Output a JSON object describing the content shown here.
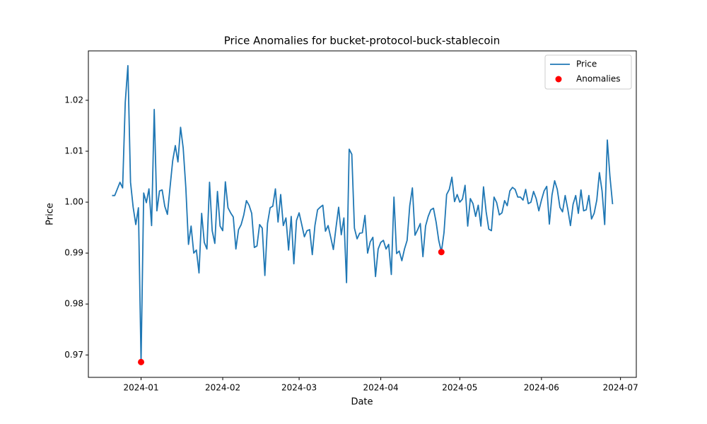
{
  "chart_data": {
    "type": "line",
    "title": "Price Anomalies for bucket-protocol-buck-stablecoin",
    "x_label": "Date",
    "y_label": "Price",
    "x": [
      "2023-12-21",
      "2023-12-22",
      "2023-12-23",
      "2023-12-24",
      "2023-12-25",
      "2023-12-26",
      "2023-12-27",
      "2023-12-28",
      "2023-12-29",
      "2023-12-30",
      "2023-12-31",
      "2024-01-01",
      "2024-01-02",
      "2024-01-03",
      "2024-01-04",
      "2024-01-05",
      "2024-01-06",
      "2024-01-07",
      "2024-01-08",
      "2024-01-09",
      "2024-01-10",
      "2024-01-11",
      "2024-01-12",
      "2024-01-13",
      "2024-01-14",
      "2024-01-15",
      "2024-01-16",
      "2024-01-17",
      "2024-01-18",
      "2024-01-19",
      "2024-01-20",
      "2024-01-21",
      "2024-01-22",
      "2024-01-23",
      "2024-01-24",
      "2024-01-25",
      "2024-01-26",
      "2024-01-27",
      "2024-01-28",
      "2024-01-29",
      "2024-01-30",
      "2024-01-31",
      "2024-02-01",
      "2024-02-02",
      "2024-02-03",
      "2024-02-04",
      "2024-02-05",
      "2024-02-06",
      "2024-02-07",
      "2024-02-08",
      "2024-02-09",
      "2024-02-10",
      "2024-02-11",
      "2024-02-12",
      "2024-02-13",
      "2024-02-14",
      "2024-02-15",
      "2024-02-16",
      "2024-02-17",
      "2024-02-18",
      "2024-02-19",
      "2024-02-20",
      "2024-02-21",
      "2024-02-22",
      "2024-02-23",
      "2024-02-24",
      "2024-02-25",
      "2024-02-26",
      "2024-02-27",
      "2024-02-28",
      "2024-02-29",
      "2024-03-01",
      "2024-03-02",
      "2024-03-03",
      "2024-03-04",
      "2024-03-05",
      "2024-03-06",
      "2024-03-07",
      "2024-03-08",
      "2024-03-09",
      "2024-03-10",
      "2024-03-11",
      "2024-03-12",
      "2024-03-13",
      "2024-03-14",
      "2024-03-15",
      "2024-03-16",
      "2024-03-17",
      "2024-03-18",
      "2024-03-19",
      "2024-03-20",
      "2024-03-21",
      "2024-03-22",
      "2024-03-23",
      "2024-03-24",
      "2024-03-25",
      "2024-03-26",
      "2024-03-27",
      "2024-03-28",
      "2024-03-29",
      "2024-03-30",
      "2024-03-31",
      "2024-04-01",
      "2024-04-02",
      "2024-04-03",
      "2024-04-04",
      "2024-04-05",
      "2024-04-06",
      "2024-04-07",
      "2024-04-08",
      "2024-04-09",
      "2024-04-10",
      "2024-04-11",
      "2024-04-12",
      "2024-04-13",
      "2024-04-14",
      "2024-04-15",
      "2024-04-16",
      "2024-04-17",
      "2024-04-18",
      "2024-04-19",
      "2024-04-20",
      "2024-04-21",
      "2024-04-22",
      "2024-04-23",
      "2024-04-24",
      "2024-04-25",
      "2024-04-26",
      "2024-04-27",
      "2024-04-28",
      "2024-04-29",
      "2024-04-30",
      "2024-05-01",
      "2024-05-02",
      "2024-05-03",
      "2024-05-04",
      "2024-05-05",
      "2024-05-06",
      "2024-05-07",
      "2024-05-08",
      "2024-05-09",
      "2024-05-10",
      "2024-05-11",
      "2024-05-12",
      "2024-05-13",
      "2024-05-14",
      "2024-05-15",
      "2024-05-16",
      "2024-05-17",
      "2024-05-18",
      "2024-05-19",
      "2024-05-20",
      "2024-05-21",
      "2024-05-22",
      "2024-05-23",
      "2024-05-24",
      "2024-05-25",
      "2024-05-26",
      "2024-05-27",
      "2024-05-28",
      "2024-05-29",
      "2024-05-30",
      "2024-05-31",
      "2024-06-01",
      "2024-06-02",
      "2024-06-03",
      "2024-06-04",
      "2024-06-05",
      "2024-06-06",
      "2024-06-07",
      "2024-06-08",
      "2024-06-09",
      "2024-06-10",
      "2024-06-11",
      "2024-06-12",
      "2024-06-13",
      "2024-06-14",
      "2024-06-15",
      "2024-06-16",
      "2024-06-17",
      "2024-06-18",
      "2024-06-19",
      "2024-06-20",
      "2024-06-21",
      "2024-06-22",
      "2024-06-23",
      "2024-06-24",
      "2024-06-25",
      "2024-06-26",
      "2024-06-27",
      "2024-06-28"
    ],
    "series": [
      {
        "name": "Price",
        "color": "#1f77b4",
        "values": [
          1.0013,
          1.0013,
          1.0026,
          1.0039,
          1.0028,
          1.0196,
          1.0268,
          1.0039,
          0.999,
          0.9956,
          0.9989,
          0.9686,
          1.0018,
          0.9999,
          1.0026,
          0.9954,
          1.0182,
          0.9983,
          1.0022,
          1.0024,
          0.9992,
          0.9976,
          1.0029,
          1.0081,
          1.0111,
          1.0079,
          1.0147,
          1.0106,
          1.0028,
          0.9917,
          0.9953,
          0.99,
          0.9906,
          0.9861,
          0.9978,
          0.9921,
          0.9908,
          1.0039,
          0.9944,
          0.9919,
          1.0021,
          0.9953,
          0.9944,
          1.004,
          0.9989,
          0.9979,
          0.9971,
          0.9908,
          0.9946,
          0.9956,
          0.9975,
          1.0003,
          0.9994,
          0.9978,
          0.9911,
          0.9914,
          0.9956,
          0.9949,
          0.9856,
          0.9958,
          0.9989,
          0.9992,
          1.0026,
          0.9961,
          1.0015,
          0.9954,
          0.9969,
          0.9906,
          0.9972,
          0.9879,
          0.9964,
          0.9979,
          0.9956,
          0.9932,
          0.9944,
          0.9946,
          0.9897,
          0.9954,
          0.9985,
          0.999,
          0.9994,
          0.9943,
          0.9954,
          0.9931,
          0.9907,
          0.995,
          0.999,
          0.9936,
          0.9969,
          0.9842,
          1.0104,
          1.0094,
          0.9949,
          0.9928,
          0.9939,
          0.994,
          0.9974,
          0.99,
          0.9922,
          0.9931,
          0.9854,
          0.9908,
          0.9921,
          0.9925,
          0.9908,
          0.9917,
          0.9858,
          1.001,
          0.9899,
          0.9904,
          0.9885,
          0.9908,
          0.9925,
          0.9993,
          1.0028,
          0.9935,
          0.9946,
          0.9958,
          0.9893,
          0.9953,
          0.9972,
          0.9985,
          0.9988,
          0.9961,
          0.9925,
          0.9902,
          0.994,
          1.0015,
          1.0025,
          1.0049,
          1.0001,
          1.0015,
          1,
          1.0006,
          1.0033,
          0.9953,
          1.0007,
          0.9997,
          0.9972,
          0.9994,
          0.9953,
          1.003,
          0.9981,
          0.9947,
          0.9944,
          1.001,
          0.9999,
          0.9975,
          0.9979,
          1.0003,
          0.9993,
          1.0022,
          1.0029,
          1.0025,
          1.001,
          1.001,
          1.0004,
          1.0025,
          0.9997,
          1,
          1.0021,
          1.0007,
          0.9983,
          1.0004,
          1.0022,
          1.0031,
          0.9957,
          1.0014,
          1.0042,
          1.0025,
          0.999,
          0.9981,
          1.0013,
          0.9986,
          0.9954,
          0.9996,
          1.0013,
          0.9978,
          1.0024,
          0.9983,
          0.9985,
          1.0013,
          0.9967,
          0.9978,
          1.0004,
          1.0058,
          1.0022,
          0.9956,
          1.0122,
          1.005,
          0.9996
        ]
      },
      {
        "name": "Anomalies",
        "type": "scatter",
        "color": "#ff0000",
        "x": [
          "2024-01-01",
          "2024-04-24"
        ],
        "values": [
          0.9686,
          0.9902
        ]
      }
    ],
    "xlim": [
      "2023-12-12",
      "2024-07-07"
    ],
    "xticks": [
      {
        "value": "2024-01-01",
        "label": "2024-01"
      },
      {
        "value": "2024-02-01",
        "label": "2024-02"
      },
      {
        "value": "2024-03-01",
        "label": "2024-03"
      },
      {
        "value": "2024-04-01",
        "label": "2024-04"
      },
      {
        "value": "2024-05-01",
        "label": "2024-05"
      },
      {
        "value": "2024-06-01",
        "label": "2024-06"
      },
      {
        "value": "2024-07-01",
        "label": "2024-07"
      }
    ],
    "ylim": [
      0.9656,
      1.0297
    ],
    "yticks": [
      0.97,
      0.98,
      0.99,
      {
        "value": 1,
        "label": "1.00"
      },
      1.01,
      1.02
    ],
    "legend": "upper right"
  }
}
